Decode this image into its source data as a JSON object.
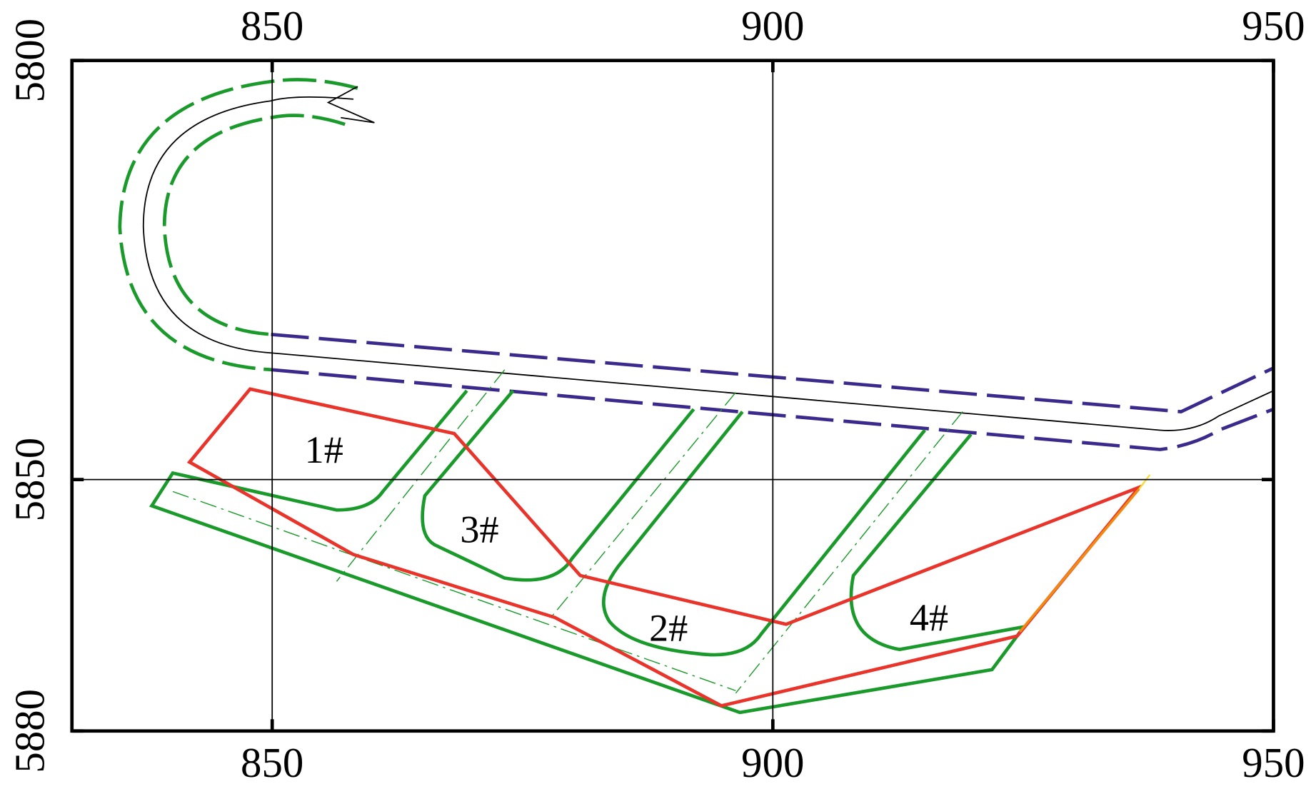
{
  "axes": {
    "xlim": [
      830,
      950
    ],
    "ylim": [
      5800,
      5880
    ],
    "x_ticks": [
      850,
      900,
      950
    ],
    "y_ticks": [
      5800,
      5850,
      5880
    ]
  },
  "zones": [
    {
      "label": "1#"
    },
    {
      "label": "3#"
    },
    {
      "label": "2#"
    },
    {
      "label": "4#"
    }
  ]
}
